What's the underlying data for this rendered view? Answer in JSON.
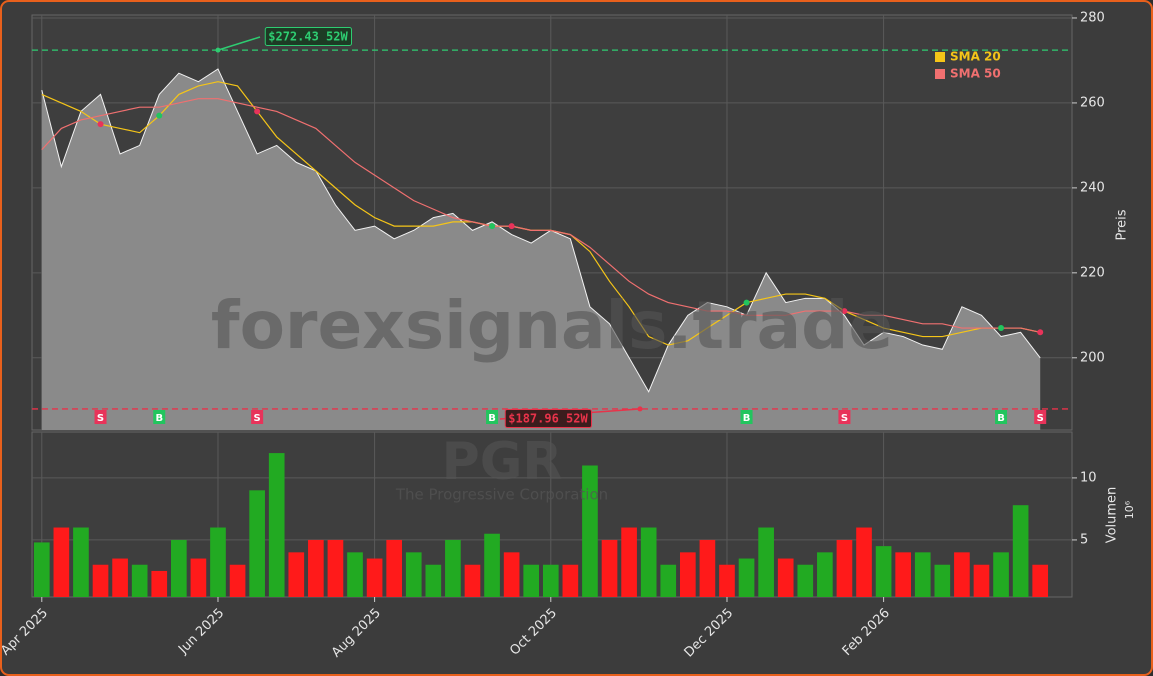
{
  "chart_data": {
    "type": "stock",
    "watermark": "forexsignals.trade",
    "ticker": "PGR",
    "company": "The Progressive Corporation",
    "categories": [
      "Apr 2025",
      null,
      null,
      null,
      null,
      null,
      null,
      null,
      null,
      "Jun 2025",
      null,
      null,
      null,
      null,
      null,
      null,
      null,
      "Aug 2025",
      null,
      null,
      null,
      null,
      null,
      null,
      null,
      null,
      "Oct 2025",
      null,
      null,
      null,
      null,
      null,
      null,
      null,
      null,
      "Dec 2025",
      null,
      null,
      null,
      null,
      null,
      null,
      null,
      "Feb 2026",
      null,
      null,
      null,
      null,
      null,
      null,
      null,
      null
    ],
    "price_values": [
      263,
      245,
      258,
      262,
      248,
      250,
      262,
      267,
      265,
      268,
      258,
      248,
      250,
      246,
      244,
      236,
      230,
      231,
      228,
      230,
      233,
      234,
      230,
      232,
      229,
      227,
      230,
      228,
      212,
      208,
      200,
      192,
      203,
      210,
      213,
      212,
      210,
      220,
      213,
      214,
      214,
      210,
      203,
      206,
      205,
      203,
      202,
      212,
      210,
      205,
      206,
      200
    ],
    "price_color": "#8a8a8a",
    "series": [
      {
        "name": "SMA 20",
        "color": "#f5c518",
        "values": [
          262,
          260,
          258,
          255,
          254,
          253,
          257,
          262,
          264,
          265,
          264,
          258,
          252,
          248,
          244,
          240,
          236,
          233,
          231,
          231,
          231,
          232,
          232,
          231,
          231,
          230,
          230,
          229,
          225,
          218,
          212,
          205,
          203,
          204,
          207,
          210,
          213,
          214,
          215,
          215,
          214,
          211,
          209,
          207,
          206,
          205,
          205,
          206,
          207,
          207,
          207,
          206
        ]
      },
      {
        "name": "SMA 50",
        "color": "#f07070",
        "values": [
          249,
          254,
          256,
          257,
          258,
          259,
          259,
          260,
          261,
          261,
          260,
          259,
          258,
          256,
          254,
          250,
          246,
          243,
          240,
          237,
          235,
          233,
          232,
          231,
          231,
          230,
          230,
          229,
          226,
          222,
          218,
          215,
          213,
          212,
          211,
          211,
          210,
          210,
          210,
          211,
          211,
          211,
          210,
          210,
          209,
          208,
          208,
          207,
          207,
          207,
          207,
          206
        ]
      }
    ],
    "ylabel": "Preis",
    "ylim": [
      183,
      280.7
    ],
    "yticks": [
      200,
      220,
      240,
      260,
      280
    ],
    "grid": true,
    "legend": "upper right",
    "reference_lines": [
      {
        "value": 272.43,
        "label": "$272.43 52W",
        "color": "#2ecc71"
      },
      {
        "value": 187.96,
        "label": "$187.96 52W",
        "color": "#e8334a"
      }
    ],
    "signals": [
      null,
      null,
      null,
      "S",
      null,
      null,
      "B",
      null,
      null,
      null,
      null,
      "S",
      null,
      null,
      null,
      null,
      null,
      null,
      null,
      null,
      null,
      null,
      null,
      "B",
      "S",
      null,
      null,
      null,
      null,
      null,
      null,
      null,
      null,
      null,
      null,
      null,
      "B",
      null,
      null,
      null,
      null,
      "S",
      null,
      null,
      null,
      null,
      null,
      null,
      null,
      "B",
      null,
      "S"
    ],
    "signal_colors": {
      "B": "#22c55e",
      "S": "#e8335a"
    },
    "volume": {
      "ylabel": "Volumen",
      "scale_label": "10⁶",
      "ylim": [
        0.4,
        13.7
      ],
      "yticks": [
        5,
        10
      ],
      "values": [
        4.8,
        6,
        6,
        3,
        3.5,
        3,
        2.5,
        5,
        3.5,
        6,
        3,
        9,
        12,
        4,
        5,
        5,
        4,
        3.5,
        5,
        4,
        3,
        5,
        3,
        5.5,
        4,
        3,
        3,
        3,
        11,
        5,
        6,
        6,
        3,
        4,
        5,
        3,
        3.5,
        6,
        3.5,
        3,
        4,
        5,
        6,
        4.5,
        4,
        4,
        3,
        4,
        3,
        4,
        7.8,
        3
      ],
      "colors": [
        "#22aa22",
        "#ff1a1a",
        "#22aa22",
        "#ff1a1a",
        "#ff1a1a",
        "#22aa22",
        "#ff1a1a",
        "#22aa22",
        "#ff1a1a",
        "#22aa22",
        "#ff1a1a",
        "#22aa22",
        "#22aa22",
        "#ff1a1a",
        "#ff1a1a",
        "#ff1a1a",
        "#22aa22",
        "#ff1a1a",
        "#ff1a1a",
        "#22aa22",
        "#22aa22",
        "#22aa22",
        "#ff1a1a",
        "#22aa22",
        "#ff1a1a",
        "#22aa22",
        "#22aa22",
        "#ff1a1a",
        "#22aa22",
        "#ff1a1a",
        "#ff1a1a",
        "#22aa22",
        "#22aa22",
        "#ff1a1a",
        "#ff1a1a",
        "#ff1a1a",
        "#22aa22",
        "#22aa22",
        "#ff1a1a",
        "#22aa22",
        "#22aa22",
        "#ff1a1a",
        "#ff1a1a",
        "#22aa22",
        "#ff1a1a",
        "#22aa22",
        "#22aa22",
        "#ff1a1a",
        "#ff1a1a",
        "#22aa22",
        "#22aa22",
        "#ff1a1a"
      ]
    }
  }
}
